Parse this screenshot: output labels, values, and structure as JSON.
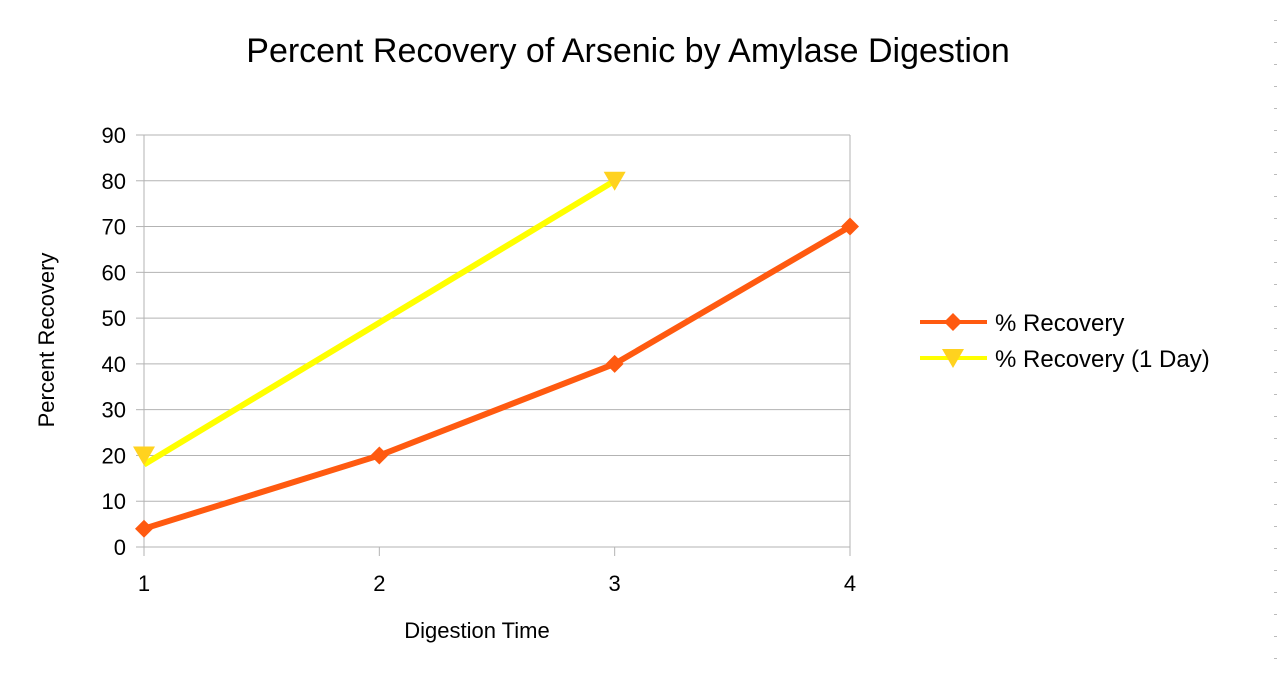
{
  "chart_data": {
    "type": "line",
    "title": "Percent Recovery of Arsenic by Amylase Digestion",
    "xlabel": "Digestion Time",
    "ylabel": "Percent Recovery",
    "x": [
      1,
      2,
      3,
      4
    ],
    "x_tick_labels": [
      "1",
      "2",
      "3",
      "4"
    ],
    "y_tick_labels": [
      "0",
      "10",
      "20",
      "30",
      "40",
      "50",
      "60",
      "70",
      "80",
      "90"
    ],
    "xlim": [
      1,
      4
    ],
    "ylim": [
      0,
      90
    ],
    "grid": true,
    "legend_position": "right",
    "series": [
      {
        "name": "% Recovery",
        "x": [
          1,
          2,
          3,
          4
        ],
        "values": [
          4,
          20,
          40,
          70
        ],
        "color": "#ff5a10",
        "marker": "diamond"
      },
      {
        "name": "% Recovery (1 Day)",
        "x": [
          1,
          3
        ],
        "values": [
          20,
          80
        ],
        "line_values": [
          18,
          80
        ],
        "color": "#ffff00",
        "marker_color": "#ffd21f",
        "marker": "triangle-down"
      }
    ]
  }
}
